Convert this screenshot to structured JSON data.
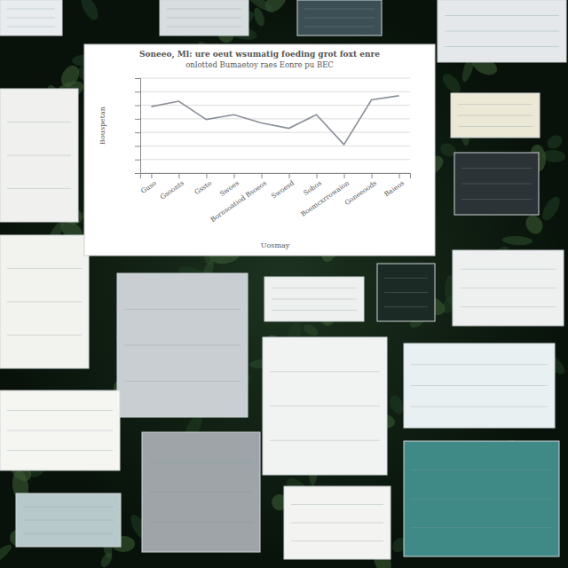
{
  "chart_data": {
    "type": "line",
    "title": "Soneeo, Ml: ure oeut wsumatig foeding grot foxt enre",
    "subtitle": "onlotted Bumaetoy raes Eonre pu BEC",
    "y_label": "Bouspetan",
    "x_label": "Uosmay",
    "categories": [
      "Guso",
      "Gsoonts",
      "Gssto",
      "Swoes",
      "Bornsoatiod Bsoeos",
      "Swoesd",
      "Sohos",
      "Boemcxrrowaion",
      "Goneeoods",
      "Baieos"
    ],
    "values": [
      49,
      53,
      39.5,
      43,
      37,
      33,
      43,
      21,
      54,
      57
    ],
    "color": "#8a8f99",
    "ylim": [
      0,
      70
    ],
    "yticks": [
      0,
      10,
      20,
      30,
      40,
      50,
      60,
      70
    ],
    "grid": true,
    "tick_labels": "x"
  }
}
